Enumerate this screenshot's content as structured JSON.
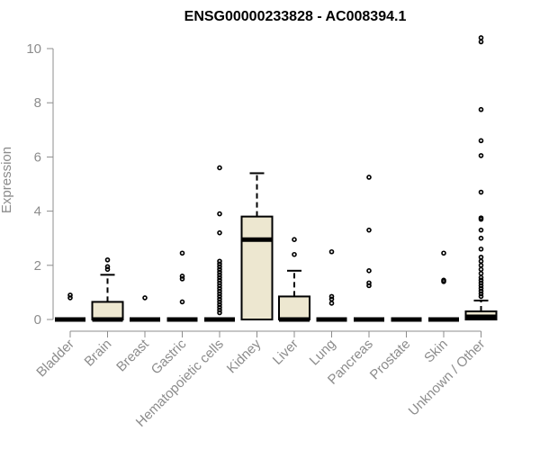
{
  "chart_data": {
    "type": "box",
    "title": "ENSG00000233828 - AC008394.1",
    "ylabel": "Expression",
    "xlabel": "",
    "ylim": [
      0,
      10.4
    ],
    "yticks": [
      "0",
      "2",
      "4",
      "6",
      "8",
      "10"
    ],
    "grid": false,
    "box_fill": "#ede7d0",
    "categories": [
      "Bladder",
      "Brain",
      "Breast",
      "Gastric",
      "Hematopoietic cells",
      "Kidney",
      "Liver",
      "Lung",
      "Pancreas",
      "Prostate",
      "Skin",
      "Unknown / Other"
    ],
    "boxes": [
      {
        "q1": 0,
        "median": 0,
        "q3": 0,
        "whisker_low": 0,
        "whisker_high": 0,
        "outliers": [
          0.8,
          0.9
        ]
      },
      {
        "q1": 0,
        "median": 0,
        "q3": 0.65,
        "whisker_low": 0,
        "whisker_high": 1.65,
        "outliers": [
          1.85,
          1.95,
          2.2
        ]
      },
      {
        "q1": 0,
        "median": 0,
        "q3": 0,
        "whisker_low": 0,
        "whisker_high": 0,
        "outliers": [
          0.8
        ]
      },
      {
        "q1": 0,
        "median": 0,
        "q3": 0,
        "whisker_low": 0,
        "whisker_high": 0,
        "outliers": [
          0.65,
          1.5,
          1.6,
          2.45
        ]
      },
      {
        "q1": 0,
        "median": 0,
        "q3": 0,
        "whisker_low": 0,
        "whisker_high": 0,
        "outliers": [
          0.25,
          0.35,
          0.45,
          0.55,
          0.65,
          0.75,
          0.85,
          0.95,
          1.05,
          1.15,
          1.25,
          1.35,
          1.45,
          1.55,
          1.65,
          1.75,
          1.85,
          1.95,
          2.05,
          2.15,
          3.2,
          3.9,
          5.6
        ]
      },
      {
        "q1": 0,
        "median": 2.95,
        "q3": 3.8,
        "whisker_low": 0,
        "whisker_high": 5.4,
        "outliers": []
      },
      {
        "q1": 0,
        "median": 0,
        "q3": 0.85,
        "whisker_low": 0,
        "whisker_high": 1.8,
        "outliers": [
          2.4,
          2.95
        ]
      },
      {
        "q1": 0,
        "median": 0,
        "q3": 0,
        "whisker_low": 0,
        "whisker_high": 0,
        "outliers": [
          0.6,
          0.75,
          0.85,
          2.5
        ]
      },
      {
        "q1": 0,
        "median": 0,
        "q3": 0,
        "whisker_low": 0,
        "whisker_high": 0,
        "outliers": [
          1.25,
          1.35,
          1.8,
          3.3,
          5.25
        ]
      },
      {
        "q1": 0,
        "median": 0,
        "q3": 0,
        "whisker_low": 0,
        "whisker_high": 0,
        "outliers": []
      },
      {
        "q1": 0,
        "median": 0,
        "q3": 0,
        "whisker_low": 0,
        "whisker_high": 0,
        "outliers": [
          1.4,
          1.45,
          2.45
        ]
      },
      {
        "q1": 0,
        "median": 0.1,
        "q3": 0.3,
        "whisker_low": 0,
        "whisker_high": 0.7,
        "outliers": [
          0.85,
          0.95,
          1.05,
          1.15,
          1.25,
          1.35,
          1.45,
          1.55,
          1.7,
          1.85,
          2.0,
          2.15,
          2.3,
          2.6,
          3.0,
          3.3,
          3.7,
          3.75,
          4.7,
          6.05,
          6.6,
          7.75,
          10.25,
          10.4
        ]
      }
    ]
  }
}
